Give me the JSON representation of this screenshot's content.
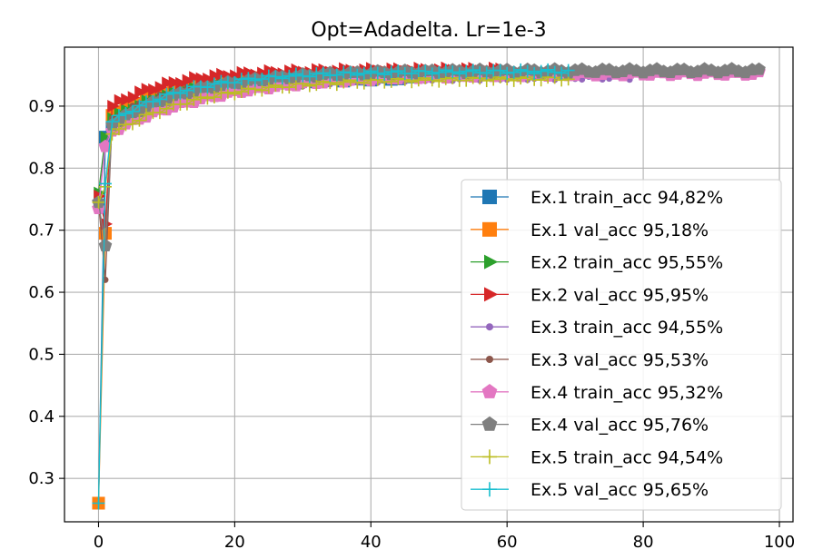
{
  "chart_data": {
    "type": "line",
    "title": "Opt=Adadelta. Lr=1e-3",
    "xlabel": "",
    "ylabel": "",
    "xlim": [
      -5,
      102
    ],
    "ylim": [
      0.23,
      0.995
    ],
    "xticks": [
      0,
      20,
      40,
      60,
      80,
      100
    ],
    "yticks": [
      0.3,
      0.4,
      0.5,
      0.6,
      0.7,
      0.8,
      0.9
    ],
    "xtick_labels": [
      "0",
      "20",
      "40",
      "60",
      "80",
      "100"
    ],
    "ytick_labels": [
      "0.3",
      "0.4",
      "0.5",
      "0.6",
      "0.7",
      "0.8",
      "0.9"
    ],
    "grid": true,
    "legend_position": "lower-right",
    "series": [
      {
        "name": "Ex.1 train_acc 94,82%",
        "color": "#1f77b4",
        "marker": "square",
        "n": 47,
        "start": 0.26,
        "e1": 0.85,
        "e2": 0.87,
        "final": 0.948,
        "k": 12
      },
      {
        "name": "Ex.1 val_acc 95,18%",
        "color": "#ff7f0e",
        "marker": "square",
        "n": 47,
        "start": 0.26,
        "e1": 0.695,
        "e2": 0.885,
        "final": 0.952,
        "k": 10
      },
      {
        "name": "Ex.2 train_acc 95,55%",
        "color": "#2ca02c",
        "marker": "triangle-right",
        "n": 60,
        "start": 0.76,
        "e1": 0.85,
        "e2": 0.88,
        "final": 0.955,
        "k": 12
      },
      {
        "name": "Ex.2 val_acc 95,95%",
        "color": "#d62728",
        "marker": "triangle-right",
        "n": 60,
        "start": 0.755,
        "e1": 0.71,
        "e2": 0.9,
        "final": 0.959,
        "k": 9
      },
      {
        "name": "Ex.3 train_acc 94,55%",
        "color": "#9467bd",
        "marker": "dot",
        "n": 79,
        "start": 0.74,
        "e1": 0.84,
        "e2": 0.865,
        "final": 0.946,
        "k": 14
      },
      {
        "name": "Ex.3 val_acc 95,53%",
        "color": "#8c564b",
        "marker": "dot",
        "n": 79,
        "start": 0.745,
        "e1": 0.62,
        "e2": 0.88,
        "final": 0.955,
        "k": 11
      },
      {
        "name": "Ex.4 train_acc 95,32%",
        "color": "#e377c2",
        "marker": "pentagon",
        "n": 98,
        "start": 0.735,
        "e1": 0.835,
        "e2": 0.86,
        "final": 0.953,
        "k": 16
      },
      {
        "name": "Ex.4 val_acc 95,76%",
        "color": "#7f7f7f",
        "marker": "pentagon",
        "n": 98,
        "start": 0.745,
        "e1": 0.675,
        "e2": 0.87,
        "final": 0.957,
        "k": 12
      },
      {
        "name": "Ex.5 train_acc 94,54%",
        "color": "#bcbd22",
        "marker": "plus",
        "n": 70,
        "start": 0.745,
        "e1": 0.77,
        "e2": 0.855,
        "final": 0.945,
        "k": 13
      },
      {
        "name": "Ex.5 val_acc 95,65%",
        "color": "#17becf",
        "marker": "plus",
        "n": 70,
        "start": 0.26,
        "e1": 0.775,
        "e2": 0.875,
        "final": 0.956,
        "k": 11
      }
    ]
  }
}
